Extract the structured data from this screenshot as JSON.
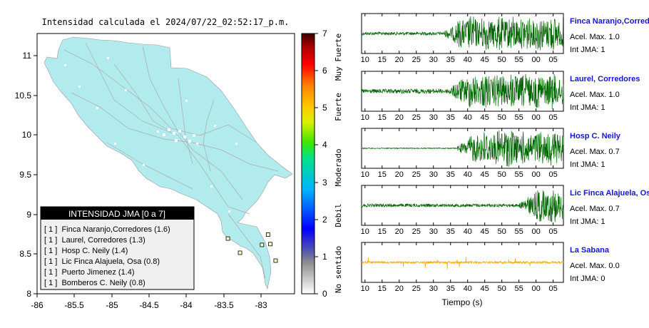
{
  "map": {
    "title": "Intensidad calculada el 2024/07/22_02:52:17_p.m.",
    "x_ticks": [
      "-86",
      "-85.5",
      "-85",
      "-84.5",
      "-84",
      "-83.5",
      "-83"
    ],
    "y_ticks": [
      "11",
      "10.5",
      "10",
      "9.5",
      "9",
      "8.5",
      "8"
    ],
    "land_color": "#b2ebee",
    "legend": {
      "title": "INTENSIDAD JMA [0 a 7]",
      "items": [
        "[ 1 ]  Finca Naranjo,Corredores (1.6)",
        "[ 1 ]  Laurel, Corredores (1.3)",
        "[ 1 ]  Hosp C. Neily (1.4)",
        "[ 1 ]  Lic Finca Alajuela, Osa (0.8)",
        "[ 1 ]  Puerto Jimenez (1.4)",
        "[ 1 ]  Bomberos C. Neily (0.8)"
      ]
    }
  },
  "colorbar": {
    "ticks": [
      "7",
      "6",
      "5",
      "4",
      "3",
      "2",
      "1",
      "0"
    ],
    "labels": [
      "Muy Fuerte",
      "Fuerte",
      "Moderado",
      "Debil",
      "No sentido"
    ]
  },
  "traces": {
    "x_ticks": [
      "10",
      "15",
      "20",
      "25",
      "30",
      "35",
      "40",
      "45",
      "50",
      "55",
      "00",
      "05"
    ],
    "xlabel": "Tiempo (s)",
    "stations": [
      {
        "name": "Finca Naranjo,Corredor",
        "accel": "Acel. Max. 1.0",
        "int": "Int JMA: 1",
        "color": "#006400",
        "name_color": "#1515d0"
      },
      {
        "name": "Laurel, Corredores",
        "accel": "Acel. Max. 1.0",
        "int": "Int JMA: 1",
        "color": "#006400",
        "name_color": "#1515d0"
      },
      {
        "name": "Hosp C. Neily",
        "accel": "Acel. Max. 0.7",
        "int": "Int JMA: 1",
        "color": "#006400",
        "name_color": "#1515d0"
      },
      {
        "name": "Lic Finca Alajuela, Osa",
        "accel": "Acel. Max. 0.7",
        "int": "Int JMA: 1",
        "color": "#006400",
        "name_color": "#1515d0"
      },
      {
        "name": "La Sabana",
        "accel": "Acel. Max. 0.0",
        "int": "Int JMA: 0",
        "color": "#ffa500",
        "name_color": "#1515d0"
      }
    ]
  },
  "chart_data": {
    "type": "map",
    "title": "Intensidad calculada el 2024/07/22_02:52:17_p.m.",
    "xlim": [
      -86,
      -82.6
    ],
    "ylim": [
      8,
      11.3
    ],
    "colorbar_range": [
      0,
      7
    ],
    "stations_plotted": [
      {
        "lon": -82.95,
        "lat": 8.75,
        "intensity": 1
      },
      {
        "lon": -83.03,
        "lat": 8.62,
        "intensity": 1
      },
      {
        "lon": -82.92,
        "lat": 8.63,
        "intensity": 1
      },
      {
        "lon": -83.48,
        "lat": 8.7,
        "intensity": 1
      },
      {
        "lon": -83.32,
        "lat": 8.52,
        "intensity": 1
      },
      {
        "lon": -82.85,
        "lat": 8.42,
        "intensity": 1
      }
    ],
    "waveforms": {
      "time_range_s": [
        9,
        68
      ],
      "series": [
        {
          "name": "Finca Naranjo,Corredor",
          "accel_max": 1.0,
          "int_jma": 1,
          "onset_s": 33
        },
        {
          "name": "Laurel, Corredores",
          "accel_max": 1.0,
          "int_jma": 1,
          "onset_s": 34
        },
        {
          "name": "Hosp C. Neily",
          "accel_max": 0.7,
          "int_jma": 1,
          "onset_s": 37
        },
        {
          "name": "Lic Finca Alajuela, Osa",
          "accel_max": 0.7,
          "int_jma": 1,
          "onset_s": 55
        },
        {
          "name": "La Sabana",
          "accel_max": 0.0,
          "int_jma": 0,
          "onset_s": null
        }
      ]
    }
  }
}
